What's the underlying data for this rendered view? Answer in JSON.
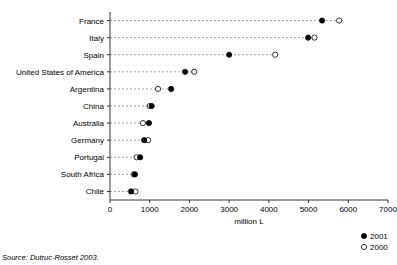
{
  "chart_data": {
    "type": "dot",
    "orientation": "horizontal",
    "categories": [
      "France",
      "Italy",
      "Spain",
      "United States of America",
      "Argentina",
      "China",
      "Australia",
      "Germany",
      "Portugal",
      "South Africa",
      "Chile"
    ],
    "series": [
      {
        "name": "2001",
        "color": "#000000",
        "marker": "filled-circle",
        "values": [
          5340,
          4990,
          3000,
          1890,
          1540,
          1050,
          980,
          860,
          760,
          630,
          530
        ]
      },
      {
        "name": "2000",
        "color": "#000000",
        "marker": "open-circle",
        "values": [
          5770,
          5150,
          4160,
          2120,
          1210,
          1000,
          830,
          960,
          670,
          600,
          640
        ]
      }
    ],
    "xlabel": "million L",
    "xlim": [
      0,
      7000
    ],
    "xticks": [
      0,
      1000,
      2000,
      3000,
      4000,
      5000,
      6000,
      7000
    ],
    "grid": false,
    "legend": "bottom-right",
    "annotations": [
      "Source: Dutruc-Rosset 2003."
    ]
  }
}
